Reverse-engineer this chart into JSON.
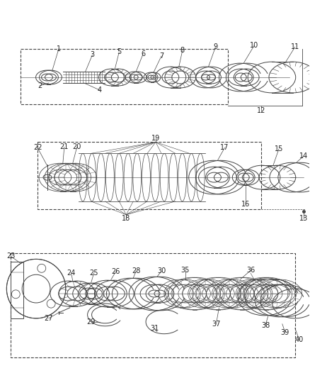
{
  "bg_color": "#ffffff",
  "fig_width": 4.38,
  "fig_height": 5.33,
  "dpi": 100,
  "line_color": "#444444",
  "label_color": "#222222",
  "label_fontsize": 7.0
}
